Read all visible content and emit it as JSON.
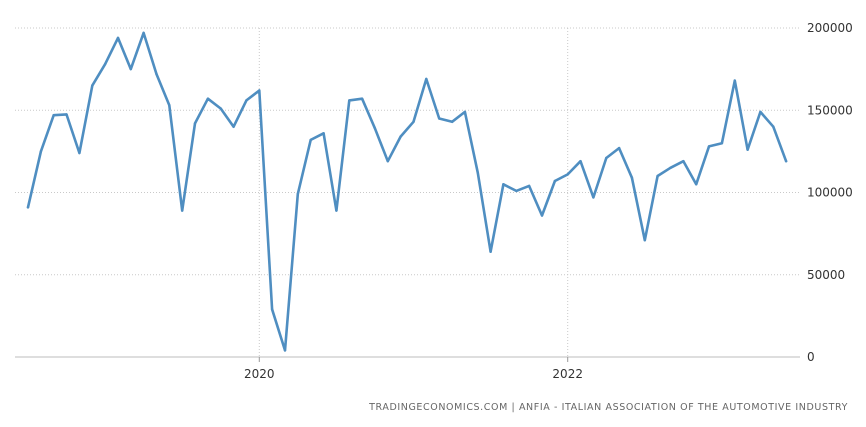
{
  "chart_data": {
    "type": "line",
    "title": "",
    "xlabel": "",
    "ylabel": "",
    "ylim": [
      0,
      200000
    ],
    "yticks": [
      {
        "value": 200000,
        "label": "200000"
      },
      {
        "value": 150000,
        "label": "150000"
      },
      {
        "value": 100000,
        "label": "100000"
      },
      {
        "value": 50000,
        "label": "50000"
      },
      {
        "value": 0,
        "label": "0"
      }
    ],
    "xticks": [
      {
        "date": "2020-01",
        "label": "2020"
      },
      {
        "date": "2022-01",
        "label": "2022"
      }
    ],
    "grid": true,
    "legend": "none",
    "line_color": "#4f8ec1",
    "x": [
      "2018-07",
      "2018-08",
      "2018-09",
      "2018-10",
      "2018-11",
      "2018-12",
      "2019-01",
      "2019-02",
      "2019-03",
      "2019-04",
      "2019-05",
      "2019-06",
      "2019-07",
      "2019-08",
      "2019-09",
      "2019-10",
      "2019-11",
      "2019-12",
      "2020-01",
      "2020-02",
      "2020-03",
      "2020-04",
      "2020-05",
      "2020-06",
      "2020-07",
      "2020-08",
      "2020-09",
      "2020-10",
      "2020-11",
      "2020-12",
      "2021-01",
      "2021-02",
      "2021-03",
      "2021-04",
      "2021-05",
      "2021-06",
      "2021-07",
      "2021-08",
      "2021-09",
      "2021-10",
      "2021-11",
      "2021-12",
      "2022-01",
      "2022-02",
      "2022-03",
      "2022-04",
      "2022-05",
      "2022-06",
      "2022-07",
      "2022-08",
      "2022-09",
      "2022-10",
      "2022-11",
      "2022-12",
      "2023-01",
      "2023-02",
      "2023-03",
      "2023-04",
      "2023-05",
      "2023-06"
    ],
    "series": [
      {
        "values": [
          91000,
          125000,
          147000,
          147500,
          124000,
          165000,
          178000,
          194000,
          175000,
          197000,
          172000,
          153000,
          89000,
          142000,
          157000,
          151000,
          140000,
          156000,
          162000,
          29000,
          4000,
          99000,
          132000,
          136000,
          89000,
          156000,
          157000,
          139000,
          119000,
          134000,
          143000,
          169000,
          145000,
          143000,
          149000,
          112000,
          64000,
          105000,
          101000,
          104000,
          86000,
          107000,
          111000,
          119000,
          97000,
          121000,
          127000,
          109000,
          71000,
          110000,
          115000,
          119000,
          105000,
          128000,
          130000,
          168000,
          126000,
          149000,
          140000,
          119000
        ]
      }
    ]
  },
  "source": "TRADINGECONOMICS.COM | ANFIA - ITALIAN ASSOCIATION OF THE AUTOMOTIVE INDUSTRY"
}
